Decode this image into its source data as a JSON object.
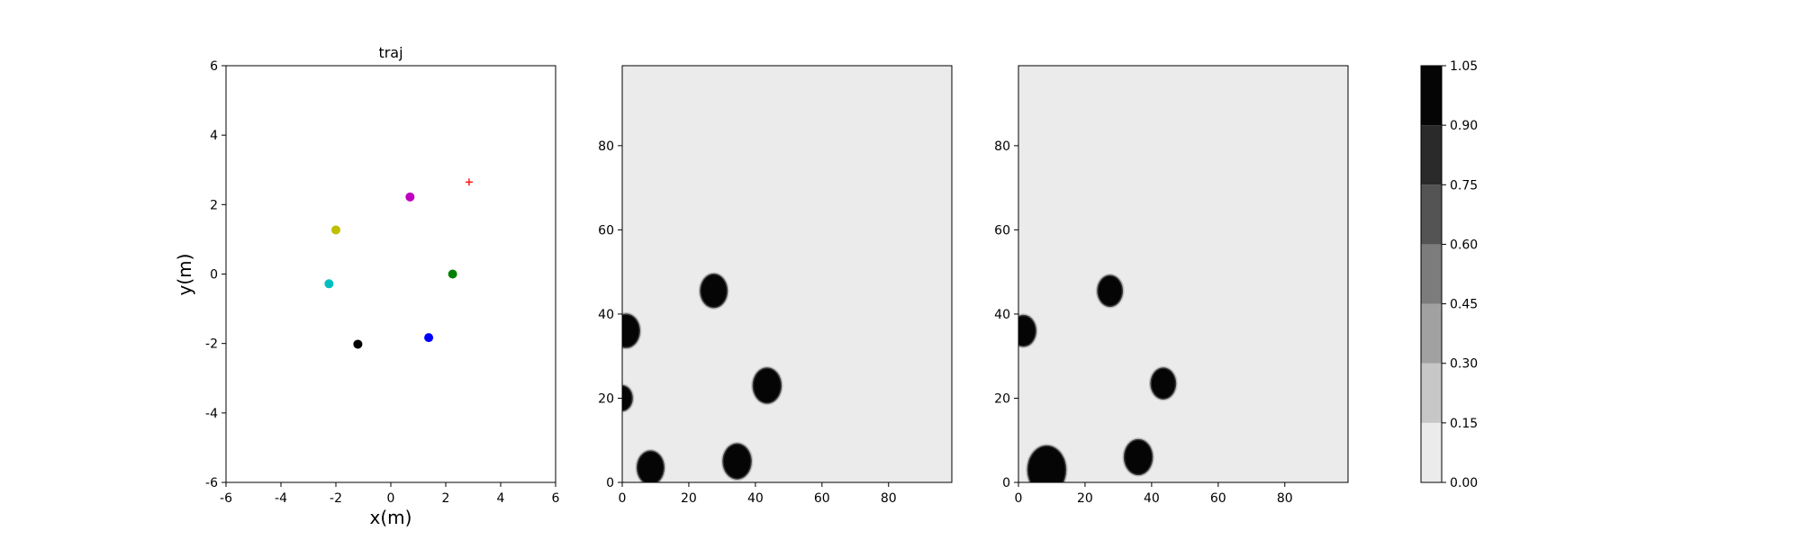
{
  "chart_data": [
    {
      "type": "scatter",
      "title": "traj",
      "xlabel": "x(m)",
      "ylabel": "y(m)",
      "xlim": [
        -6,
        6
      ],
      "ylim": [
        -6,
        6
      ],
      "xticks": [
        -6,
        -4,
        -2,
        0,
        2,
        4,
        6
      ],
      "yticks": [
        -6,
        -4,
        -2,
        0,
        2,
        4,
        6
      ],
      "grid": false,
      "points": [
        {
          "x": 0.7,
          "y": 2.22,
          "color": "#bf00bf",
          "marker": "circle"
        },
        {
          "x": -2.0,
          "y": 1.27,
          "color": "#bfbf00",
          "marker": "circle"
        },
        {
          "x": -2.25,
          "y": -0.28,
          "color": "#00bfbf",
          "marker": "circle"
        },
        {
          "x": 2.25,
          "y": 0.0,
          "color": "#008000",
          "marker": "circle"
        },
        {
          "x": 1.38,
          "y": -1.83,
          "color": "#0000ff",
          "marker": "circle"
        },
        {
          "x": -1.2,
          "y": -2.02,
          "color": "#000000",
          "marker": "circle"
        },
        {
          "x": 2.85,
          "y": 2.65,
          "color": "#ff0000",
          "marker": "plus"
        }
      ]
    },
    {
      "type": "heatmap",
      "title": "",
      "xlim": [
        0,
        99
      ],
      "ylim": [
        0,
        99
      ],
      "xticks": [
        0,
        20,
        40,
        60,
        80
      ],
      "yticks": [
        0,
        20,
        40,
        60,
        80
      ],
      "background_level": 0.0,
      "blobs": [
        {
          "x": 27.5,
          "y": 45.5,
          "r": 3.8
        },
        {
          "x": 1.2,
          "y": 36.0,
          "r": 3.8
        },
        {
          "x": 43.5,
          "y": 23.0,
          "r": 4.0
        },
        {
          "x": 0.0,
          "y": 20.0,
          "r": 2.8
        },
        {
          "x": 34.5,
          "y": 5.0,
          "r": 4.0
        },
        {
          "x": 8.5,
          "y": 3.5,
          "r": 3.8
        }
      ]
    },
    {
      "type": "heatmap",
      "title": "",
      "xlim": [
        0,
        99
      ],
      "ylim": [
        0,
        99
      ],
      "xticks": [
        0,
        20,
        40,
        60,
        80
      ],
      "yticks": [
        0,
        20,
        40,
        60,
        80
      ],
      "background_level": 0.0,
      "blobs": [
        {
          "x": 27.5,
          "y": 45.5,
          "r": 3.5
        },
        {
          "x": 1.5,
          "y": 36.0,
          "r": 3.5
        },
        {
          "x": 43.5,
          "y": 23.5,
          "r": 3.5
        },
        {
          "x": 36.0,
          "y": 6.0,
          "r": 4.0
        },
        {
          "x": 8.5,
          "y": 3.0,
          "r": 5.5
        }
      ]
    }
  ],
  "colorbar": {
    "ticks": [
      "0.00",
      "0.15",
      "0.30",
      "0.45",
      "0.60",
      "0.75",
      "0.90",
      "1.05"
    ],
    "levels": [
      {
        "from": 0.0,
        "to": 0.15,
        "color": "#ebebeb"
      },
      {
        "from": 0.15,
        "to": 0.3,
        "color": "#c7c7c7"
      },
      {
        "from": 0.3,
        "to": 0.45,
        "color": "#a1a1a1"
      },
      {
        "from": 0.45,
        "to": 0.6,
        "color": "#7c7c7c"
      },
      {
        "from": 0.6,
        "to": 0.75,
        "color": "#545454"
      },
      {
        "from": 0.75,
        "to": 0.9,
        "color": "#2a2a2a"
      },
      {
        "from": 0.9,
        "to": 1.05,
        "color": "#050505"
      }
    ]
  }
}
